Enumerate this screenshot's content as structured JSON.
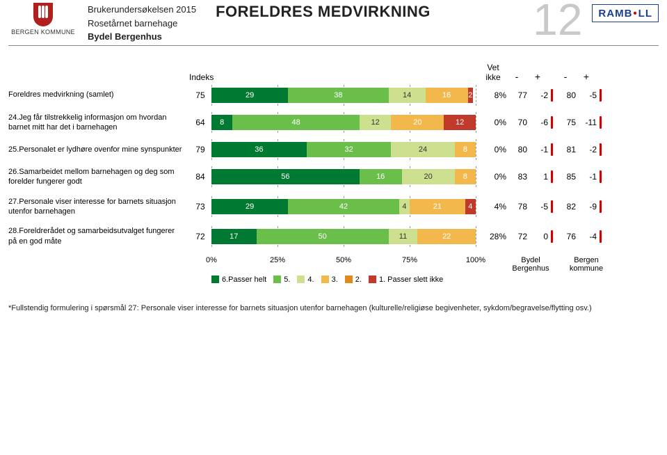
{
  "header": {
    "org": "BERGEN KOMMUNE",
    "survey": "Brukerundersøkelsen 2015",
    "unit": "Rosetårnet barnehage",
    "district": "Bydel Bergenhus",
    "title": "FORELDRES MEDVIRKNING",
    "page_number": "12",
    "brand": "RAMBOLL"
  },
  "columns": {
    "index": "Indeks",
    "vetikke": "Vet ikke",
    "minus1": "-",
    "plus1": "+",
    "minus2": "-",
    "plus2": "+",
    "bydel": "Bydel Bergenhus",
    "bydel_l1": "Bydel",
    "bydel_l2": "Bergenhus",
    "bergen": "Bergen kommune",
    "bergen_l1": "Bergen",
    "bergen_l2": "kommune"
  },
  "axis": {
    "ticks": [
      "0%",
      "25%",
      "50%",
      "75%",
      "100%"
    ]
  },
  "colors": {
    "c6": "#007a33",
    "c5": "#6abf4b",
    "c4": "#cce08f",
    "c3": "#f2b84b",
    "c2": "#e08a1e",
    "c1": "#c0392b",
    "grid": "#999999",
    "sep": "#d00000"
  },
  "legend": [
    {
      "key": "c6",
      "label": "6.Passer helt"
    },
    {
      "key": "c5",
      "label": "5."
    },
    {
      "key": "c4",
      "label": "4."
    },
    {
      "key": "c3",
      "label": "3."
    },
    {
      "key": "c2",
      "label": "2."
    },
    {
      "key": "c1",
      "label": "1. Passer slett ikke"
    }
  ],
  "rows": [
    {
      "label": "Foreldres medvirkning (samlet)",
      "index": "75",
      "segments": [
        {
          "k": "c6",
          "v": 29
        },
        {
          "k": "c5",
          "v": 38
        },
        {
          "k": "c4",
          "v": 14
        },
        {
          "k": "c3",
          "v": 16
        },
        {
          "k": "c1",
          "v": 2
        }
      ],
      "vetikke": "8%",
      "b1": "77",
      "b2": "-2",
      "b3": "80",
      "b4": "-5"
    },
    {
      "label": "24.Jeg får tilstrekkelig informasjon om hvordan barnet mitt har det i barnehagen",
      "index": "64",
      "segments": [
        {
          "k": "c6",
          "v": 8
        },
        {
          "k": "c5",
          "v": 48
        },
        {
          "k": "c4",
          "v": 12
        },
        {
          "k": "c3",
          "v": 20
        },
        {
          "k": "c1",
          "v": 12
        }
      ],
      "vetikke": "0%",
      "b1": "70",
      "b2": "-6",
      "b3": "75",
      "b4": "-11"
    },
    {
      "label": "25.Personalet er lydhøre ovenfor mine synspunkter",
      "index": "79",
      "segments": [
        {
          "k": "c6",
          "v": 36
        },
        {
          "k": "c5",
          "v": 32
        },
        {
          "k": "c4",
          "v": 24
        },
        {
          "k": "c3",
          "v": 8
        }
      ],
      "vetikke": "0%",
      "b1": "80",
      "b2": "-1",
      "b3": "81",
      "b4": "-2"
    },
    {
      "label": "26.Samarbeidet mellom barnehagen og deg som forelder fungerer godt",
      "index": "84",
      "segments": [
        {
          "k": "c6",
          "v": 56
        },
        {
          "k": "c5",
          "v": 16
        },
        {
          "k": "c4",
          "v": 20
        },
        {
          "k": "c3",
          "v": 8
        }
      ],
      "vetikke": "0%",
      "b1": "83",
      "b2": "1",
      "b3": "85",
      "b4": "-1"
    },
    {
      "label": "27.Personale viser interesse for barnets situasjon utenfor barnehagen",
      "index": "73",
      "segments": [
        {
          "k": "c6",
          "v": 29
        },
        {
          "k": "c5",
          "v": 42
        },
        {
          "k": "c4",
          "v": 4
        },
        {
          "k": "c3",
          "v": 21
        },
        {
          "k": "c1",
          "v": 4
        }
      ],
      "vetikke": "4%",
      "b1": "78",
      "b2": "-5",
      "b3": "82",
      "b4": "-9"
    },
    {
      "label": "28.Foreldrerådet og samarbeidsutvalget fungerer på en god måte",
      "index": "72",
      "segments": [
        {
          "k": "c6",
          "v": 17
        },
        {
          "k": "c5",
          "v": 50
        },
        {
          "k": "c4",
          "v": 11
        },
        {
          "k": "c3",
          "v": 22
        }
      ],
      "vetikke": "28%",
      "b1": "72",
      "b2": "0",
      "b3": "76",
      "b4": "-4"
    }
  ],
  "footnote": "*Fullstendig formulering i spørsmål 27: Personale viser interesse for barnets situasjon utenfor barnehagen (kulturelle/religiøse begivenheter, sykdom/begravelse/flytting osv.)"
}
